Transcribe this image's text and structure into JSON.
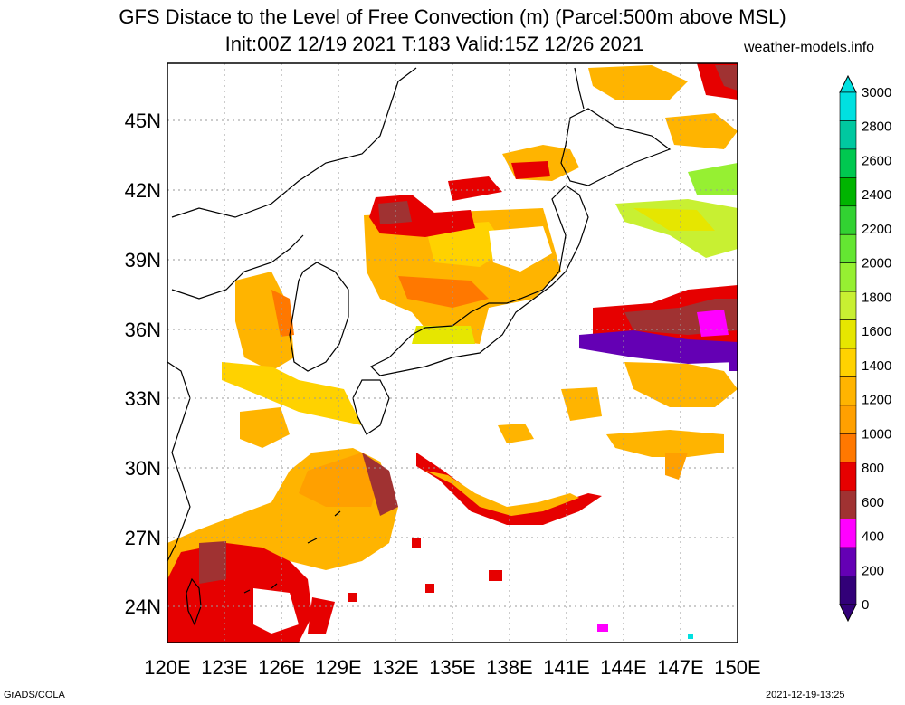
{
  "title": "GFS Distace to the Level of Free Convection (m) (Parcel:500m above MSL)",
  "subtitle": "Init:00Z 12/19 2021 T:183 Valid:15Z 12/26 2021",
  "site": "weather-models.info",
  "footer_left": "GrADS/COLA",
  "footer_right": "2021-12-19-13:25",
  "map": {
    "lon_range": [
      120,
      150
    ],
    "lat_range": [
      22.5,
      47.5
    ],
    "lat_ticks": [
      "45N",
      "42N",
      "39N",
      "36N",
      "33N",
      "30N",
      "27N",
      "24N"
    ],
    "lon_ticks": [
      "120E",
      "123E",
      "126E",
      "129E",
      "132E",
      "135E",
      "138E",
      "141E",
      "144E",
      "147E",
      "150E"
    ]
  },
  "colorbar": {
    "labels": [
      "3000",
      "2800",
      "2600",
      "2400",
      "2200",
      "2000",
      "1800",
      "1600",
      "1400",
      "1200",
      "1000",
      "800",
      "600",
      "400",
      "200",
      "0"
    ],
    "colors": [
      "#00e0e0",
      "#00c8a0",
      "#00c850",
      "#00b400",
      "#32d232",
      "#64e632",
      "#96f032",
      "#c8f032",
      "#e6e600",
      "#ffd200",
      "#ffb400",
      "#ffa000",
      "#ff7800",
      "#e60000",
      "#a03232",
      "#ff00ff",
      "#6400b4",
      "#320078"
    ],
    "top_triangle": "#00e0e0",
    "bottom_triangle": "#320078"
  }
}
